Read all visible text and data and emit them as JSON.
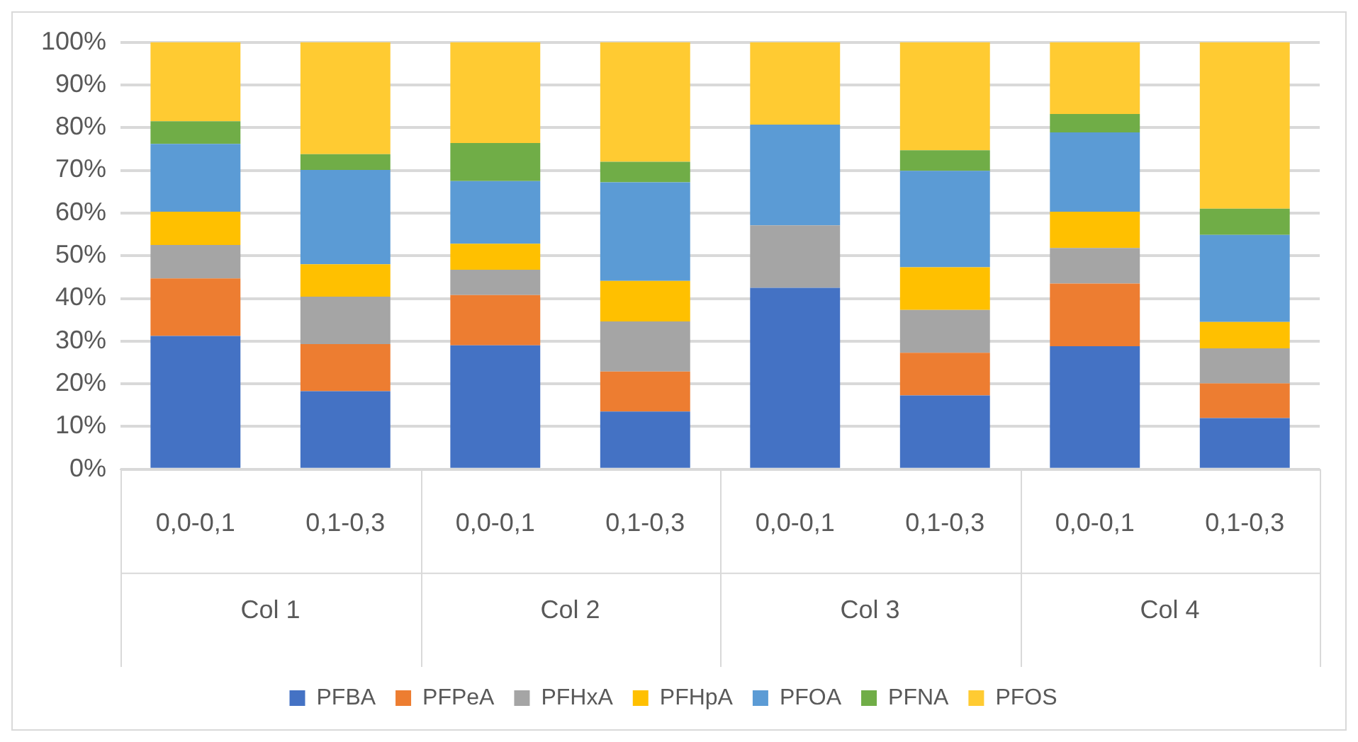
{
  "chart_data": {
    "type": "bar",
    "stacked": true,
    "categories": [
      "0,0-0,1",
      "0,1-0,3",
      "0,0-0,1",
      "0,1-0,3",
      "0,0-0,1",
      "0,1-0,3",
      "0,0-0,1",
      "0,1-0,3"
    ],
    "annotations": [
      "Col 1",
      "Col 2",
      "Col 3",
      "Col 4"
    ],
    "series": [
      {
        "name": "PFBA",
        "color": "#4472c4",
        "values": [
          31.2,
          18.3,
          29.0,
          13.5,
          42.5,
          17.3,
          28.8,
          12.0
        ]
      },
      {
        "name": "PFPeA",
        "color": "#ed7d31",
        "values": [
          13.5,
          11.0,
          11.8,
          9.4,
          0,
          10.0,
          14.7,
          8.1
        ]
      },
      {
        "name": "PFHxA",
        "color": "#a5a5a5",
        "values": [
          7.8,
          11.1,
          5.9,
          11.7,
          14.6,
          10.0,
          8.3,
          8.2
        ]
      },
      {
        "name": "PFHpA",
        "color": "#ffc000",
        "values": [
          7.8,
          7.6,
          6.1,
          9.5,
          0,
          10.0,
          8.5,
          6.2
        ]
      },
      {
        "name": "PFOA",
        "color": "#5b9bd5",
        "values": [
          15.9,
          22.1,
          14.7,
          23.1,
          23.6,
          22.6,
          18.6,
          20.4
        ]
      },
      {
        "name": "PFNA",
        "color": "#70ad47",
        "values": [
          5.3,
          3.7,
          8.9,
          4.8,
          0,
          4.8,
          4.3,
          6.1
        ]
      },
      {
        "name": "PFOS",
        "color": "#ffcb32",
        "values": [
          18.5,
          26.2,
          23.6,
          28.0,
          19.3,
          25.3,
          16.8,
          39.0
        ]
      }
    ],
    "ylim": [
      0,
      100
    ],
    "yticks": [
      {
        "value": 0,
        "label": "0%"
      },
      {
        "value": 10,
        "label": "10%"
      },
      {
        "value": 20,
        "label": "20%"
      },
      {
        "value": 30,
        "label": "30%"
      },
      {
        "value": 40,
        "label": "40%"
      },
      {
        "value": 50,
        "label": "50%"
      },
      {
        "value": 60,
        "label": "60%"
      },
      {
        "value": 70,
        "label": "70%"
      },
      {
        "value": 80,
        "label": "80%"
      },
      {
        "value": 90,
        "label": "90%"
      },
      {
        "value": 100,
        "label": "100%"
      }
    ],
    "grid": "y",
    "legend": "bottom"
  }
}
